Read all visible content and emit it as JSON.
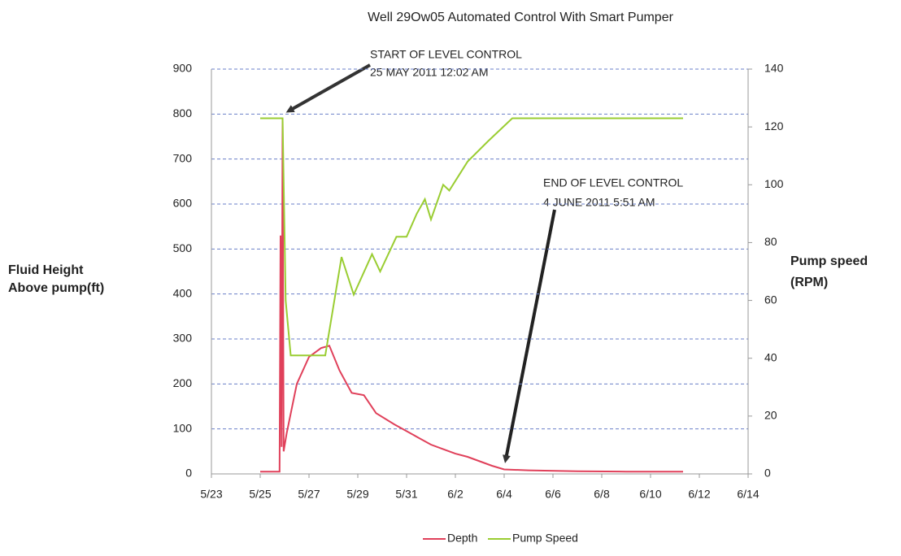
{
  "chart_data": {
    "type": "line",
    "title": "Well 29Ow05 Automated Control With Smart Pumper",
    "ylabel": [
      "Fluid Height",
      "Above pump(ft)"
    ],
    "y2label": [
      "Pump speed",
      "(RPM)"
    ],
    "xlim": [
      "2011-05-23T00:00",
      "2011-06-14T00:00"
    ],
    "xticks": [
      {
        "value": "2011-05-23T00:00",
        "label": "5/23"
      },
      {
        "value": "2011-05-25T00:00",
        "label": "5/25"
      },
      {
        "value": "2011-05-27T00:00",
        "label": "5/27"
      },
      {
        "value": "2011-05-29T00:00",
        "label": "5/29"
      },
      {
        "value": "2011-05-31T00:00",
        "label": "5/31"
      },
      {
        "value": "2011-06-02T00:00",
        "label": "6/2"
      },
      {
        "value": "2011-06-04T00:00",
        "label": "6/4"
      },
      {
        "value": "2011-06-06T00:00",
        "label": "6/6"
      },
      {
        "value": "2011-06-08T00:00",
        "label": "6/8"
      },
      {
        "value": "2011-06-10T00:00",
        "label": "6/10"
      },
      {
        "value": "2011-06-12T00:00",
        "label": "6/12"
      },
      {
        "value": "2011-06-14T00:00",
        "label": "6/14"
      }
    ],
    "ylim": [
      0,
      900
    ],
    "yticks": [
      0,
      100,
      200,
      300,
      400,
      500,
      600,
      700,
      800,
      900
    ],
    "y2lim": [
      0,
      140
    ],
    "y2ticks": [
      0,
      20,
      40,
      60,
      80,
      100,
      120,
      140
    ],
    "grid": true,
    "legend": "bottom",
    "annotations": [
      {
        "lines": [
          "START OF   LEVEL CONTROL",
          "25 MAY 2011 12:02 AM"
        ]
      },
      {
        "lines": [
          "END OF   LEVEL CONTROL",
          "4 JUNE 2011 5:51 AM"
        ]
      }
    ],
    "series": [
      {
        "name": "Depth",
        "color": "#e0405a",
        "x": [
          "2011-05-25T00:00",
          "2011-05-25T19:00",
          "2011-05-25T20:00",
          "2011-05-25T21:00",
          "2011-05-25T22:00",
          "2011-05-25T23:00",
          "2011-05-26T02:00",
          "2011-05-26T12:00",
          "2011-05-27T00:00",
          "2011-05-27T12:00",
          "2011-05-27T20:00",
          "2011-05-28T06:00",
          "2011-05-28T18:00",
          "2011-05-29T06:00",
          "2011-05-29T18:00",
          "2011-05-30T12:00",
          "2011-05-31T00:00",
          "2011-05-31T12:00",
          "2011-06-01T00:00",
          "2011-06-01T12:00",
          "2011-06-02T00:00",
          "2011-06-02T12:00",
          "2011-06-03T00:00",
          "2011-06-03T12:00",
          "2011-06-04T00:00",
          "2011-06-05T00:00",
          "2011-06-07T00:00",
          "2011-06-09T00:00",
          "2011-06-11T08:00"
        ],
        "values": [
          5,
          5,
          530,
          60,
          790,
          50,
          90,
          200,
          260,
          280,
          285,
          230,
          180,
          175,
          135,
          110,
          95,
          80,
          65,
          55,
          45,
          38,
          28,
          18,
          10,
          8,
          6,
          5,
          5
        ]
      },
      {
        "name": "Pump Speed",
        "color": "#9acd32",
        "axis": "y2",
        "x": [
          "2011-05-25T00:00",
          "2011-05-25T22:00",
          "2011-05-26T01:00",
          "2011-05-26T06:00",
          "2011-05-27T16:00",
          "2011-05-28T08:00",
          "2011-05-28T20:00",
          "2011-05-29T14:00",
          "2011-05-29T22:00",
          "2011-05-30T14:00",
          "2011-05-31T00:00",
          "2011-05-31T10:00",
          "2011-05-31T18:00",
          "2011-06-01T00:00",
          "2011-06-01T12:00",
          "2011-06-01T18:00",
          "2011-06-02T12:00",
          "2011-06-03T08:00",
          "2011-06-04T08:00",
          "2011-06-11T08:00"
        ],
        "values": [
          123,
          123,
          60,
          41,
          41,
          75,
          62,
          76,
          70,
          82,
          82,
          90,
          95,
          88,
          100,
          98,
          108,
          115,
          123,
          123
        ]
      }
    ]
  }
}
